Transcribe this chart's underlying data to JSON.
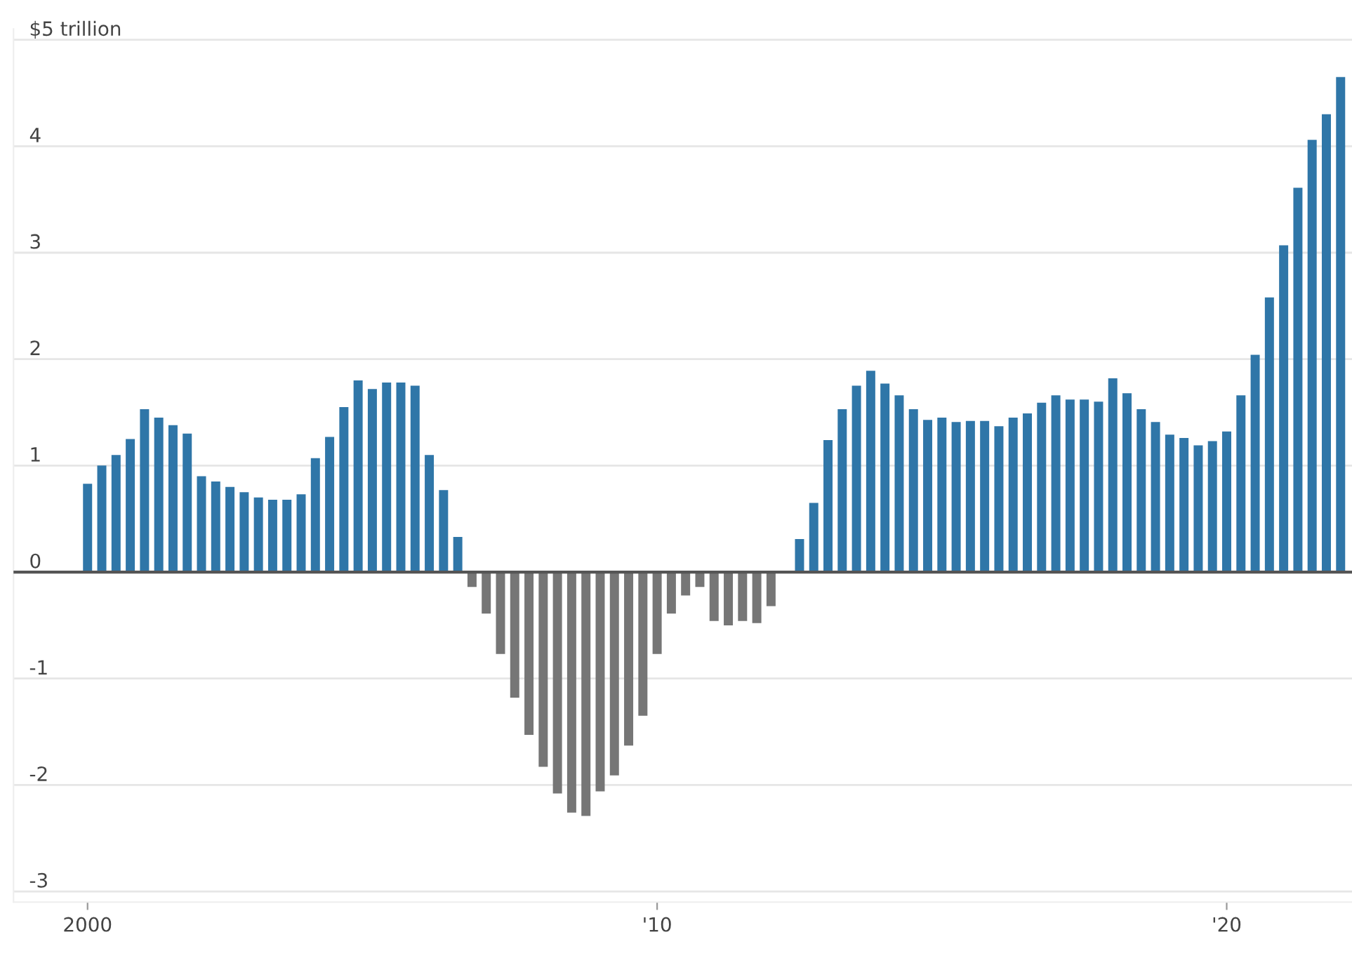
{
  "chart_data": {
    "type": "bar",
    "x": [
      2000,
      2000.25,
      2000.5,
      2000.75,
      2001,
      2001.25,
      2001.5,
      2001.75,
      2002,
      2002.25,
      2002.5,
      2002.75,
      2003,
      2003.25,
      2003.5,
      2003.75,
      2004,
      2004.25,
      2004.5,
      2004.75,
      2005,
      2005.25,
      2005.5,
      2005.75,
      2006,
      2006.25,
      2006.5,
      2006.75,
      2007,
      2007.25,
      2007.5,
      2007.75,
      2008,
      2008.25,
      2008.5,
      2008.75,
      2009,
      2009.25,
      2009.5,
      2009.75,
      2010,
      2010.25,
      2010.5,
      2010.75,
      2011,
      2011.25,
      2011.5,
      2011.75,
      2012,
      2012.25,
      2012.5,
      2012.75,
      2013,
      2013.25,
      2013.5,
      2013.75,
      2014,
      2014.25,
      2014.5,
      2014.75,
      2015,
      2015.25,
      2015.5,
      2015.75,
      2016,
      2016.25,
      2016.5,
      2016.75,
      2017,
      2017.25,
      2017.5,
      2017.75,
      2018,
      2018.25,
      2018.5,
      2018.75,
      2019,
      2019.25,
      2019.5,
      2019.75,
      2020,
      2020.25,
      2020.5,
      2020.75,
      2021,
      2021.25,
      2021.5,
      2021.75,
      2022
    ],
    "values": [
      0.83,
      1.0,
      1.1,
      1.25,
      1.53,
      1.45,
      1.38,
      1.3,
      0.9,
      0.85,
      0.8,
      0.75,
      0.7,
      0.68,
      0.68,
      0.73,
      1.07,
      1.27,
      1.55,
      1.8,
      1.72,
      1.78,
      1.78,
      1.75,
      1.1,
      0.77,
      0.33,
      -0.14,
      -0.39,
      -0.77,
      -1.18,
      -1.53,
      -1.83,
      -2.08,
      -2.26,
      -2.29,
      -2.06,
      -1.91,
      -1.63,
      -1.35,
      -0.77,
      -0.39,
      -0.22,
      -0.14,
      -0.46,
      -0.5,
      -0.46,
      -0.48,
      -0.32,
      0,
      0.31,
      0.65,
      1.24,
      1.53,
      1.75,
      1.89,
      1.77,
      1.66,
      1.53,
      1.43,
      1.45,
      1.41,
      1.42,
      1.42,
      1.37,
      1.45,
      1.49,
      1.59,
      1.66,
      1.62,
      1.62,
      1.6,
      1.82,
      1.68,
      1.53,
      1.41,
      1.29,
      1.26,
      1.19,
      1.23,
      1.32,
      1.66,
      2.04,
      2.58,
      3.07,
      3.61,
      4.06,
      4.3,
      4.65
    ],
    "colors": [
      "#2f76a8",
      "#2f76a8",
      "#2f76a8",
      "#2f76a8",
      "#2f76a8",
      "#2f76a8",
      "#2f76a8",
      "#2f76a8",
      "#2f76a8",
      "#2f76a8",
      "#2f76a8",
      "#2f76a8",
      "#2f76a8",
      "#2f76a8",
      "#2f76a8",
      "#2f76a8",
      "#2f76a8",
      "#2f76a8",
      "#2f76a8",
      "#2f76a8",
      "#2f76a8",
      "#2f76a8",
      "#2f76a8",
      "#2f76a8",
      "#2f76a8",
      "#2f76a8",
      "#2f76a8",
      "#767676",
      "#767676",
      "#767676",
      "#767676",
      "#767676",
      "#767676",
      "#767676",
      "#767676",
      "#767676",
      "#767676",
      "#767676",
      "#767676",
      "#767676",
      "#767676",
      "#767676",
      "#767676",
      "#767676",
      "#767676",
      "#767676",
      "#767676",
      "#767676",
      "#767676",
      "#767676",
      "#2f76a8",
      "#2f76a8",
      "#2f76a8",
      "#2f76a8",
      "#2f76a8",
      "#2f76a8",
      "#2f76a8",
      "#2f76a8",
      "#2f76a8",
      "#2f76a8",
      "#2f76a8",
      "#2f76a8",
      "#2f76a8",
      "#2f76a8",
      "#2f76a8",
      "#2f76a8",
      "#2f76a8",
      "#2f76a8",
      "#2f76a8",
      "#2f76a8",
      "#2f76a8",
      "#2f76a8",
      "#2f76a8",
      "#2f76a8",
      "#2f76a8",
      "#2f76a8",
      "#2f76a8",
      "#2f76a8",
      "#2f76a8",
      "#2f76a8",
      "#2f76a8",
      "#2f76a8",
      "#2f76a8",
      "#2f76a8",
      "#2f76a8",
      "#2f76a8",
      "#2f76a8",
      "#2f76a8",
      "#2f76a8"
    ],
    "xlim": [
      1998.7,
      2022.2
    ],
    "xticks": [
      {
        "value": 2000,
        "label": "2000"
      },
      {
        "value": 2010,
        "label": "'10"
      },
      {
        "value": 2020,
        "label": "'20"
      }
    ],
    "ylim": [
      -3.1,
      5.1
    ],
    "yticks": [
      -3,
      -2,
      -1,
      0,
      1,
      2,
      3,
      4,
      {
        "value": 5,
        "label": "$5 trillion"
      }
    ],
    "grid": "y",
    "ref_lines": [
      {
        "axis": "y",
        "value": 0,
        "color": "#555555"
      }
    ]
  }
}
